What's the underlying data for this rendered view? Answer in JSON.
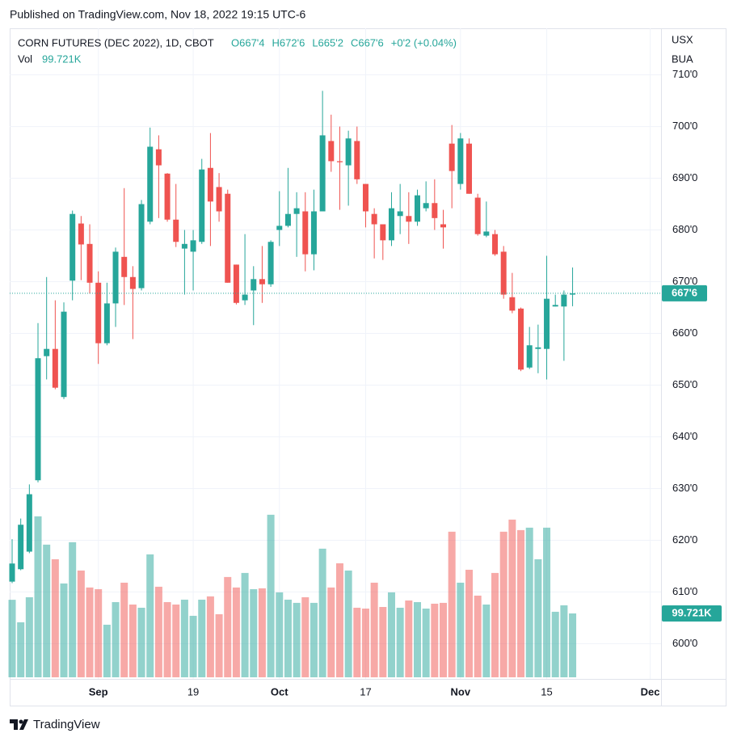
{
  "header": {
    "published": "Published on TradingView.com, Nov 18, 2022 19:15 UTC-6"
  },
  "footer": {
    "brand": "TradingView"
  },
  "chart_data": {
    "type": "candlestick",
    "title": "CORN FUTURES (DEC 2022), 1D, CBOT",
    "legend_values": [
      "O667'4",
      "H672'6",
      "L665'2",
      "C667'6"
    ],
    "change_label": "+0'2 (+0.04%)",
    "volume_label": "Vol",
    "volume_value_label": "99.721K",
    "currency_lines": [
      "USX",
      "BUA"
    ],
    "up_color": "#26a69a",
    "down_color": "#ef5350",
    "grid": true,
    "categories": [
      "2022-08-18",
      "2022-08-19",
      "2022-08-22",
      "2022-08-23",
      "2022-08-24",
      "2022-08-25",
      "2022-08-26",
      "2022-08-29",
      "2022-08-30",
      "2022-08-31",
      "2022-09-01",
      "2022-09-02",
      "2022-09-06",
      "2022-09-07",
      "2022-09-08",
      "2022-09-09",
      "2022-09-12",
      "2022-09-13",
      "2022-09-14",
      "2022-09-15",
      "2022-09-16",
      "2022-09-19",
      "2022-09-20",
      "2022-09-21",
      "2022-09-22",
      "2022-09-23",
      "2022-09-26",
      "2022-09-27",
      "2022-09-28",
      "2022-09-29",
      "2022-09-30",
      "2022-10-03",
      "2022-10-04",
      "2022-10-05",
      "2022-10-06",
      "2022-10-07",
      "2022-10-10",
      "2022-10-11",
      "2022-10-12",
      "2022-10-13",
      "2022-10-14",
      "2022-10-17",
      "2022-10-18",
      "2022-10-19",
      "2022-10-20",
      "2022-10-21",
      "2022-10-24",
      "2022-10-25",
      "2022-10-26",
      "2022-10-27",
      "2022-10-28",
      "2022-10-31",
      "2022-11-01",
      "2022-11-02",
      "2022-11-03",
      "2022-11-04",
      "2022-11-07",
      "2022-11-08",
      "2022-11-09",
      "2022-11-10",
      "2022-11-11",
      "2022-11-14",
      "2022-11-15",
      "2022-11-16",
      "2022-11-17",
      "2022-11-18"
    ],
    "open": [
      612.0,
      614.4,
      617.8,
      631.6,
      655.6,
      657.0,
      647.7,
      670.2,
      681.25,
      677.3,
      669.8,
      658.1,
      665.8,
      674.8,
      670.9,
      668.75,
      681.6,
      695.6,
      690.9,
      682.0,
      676.4,
      675.8,
      677.7,
      692.0,
      688.3,
      687.0,
      673.3,
      666.4,
      668.3,
      670.5,
      669.5,
      680.0,
      680.8,
      683.1,
      683.6,
      675.3,
      683.6,
      697.2,
      693.3,
      692.5,
      697.2,
      688.9,
      683.1,
      681.1,
      678.0,
      682.7,
      682.7,
      681.6,
      684.2,
      685.2,
      681.1,
      696.7,
      688.9,
      696.7,
      686.25,
      678.9,
      679.2,
      675.8,
      667.0,
      664.8,
      653.4,
      657.0,
      657.0,
      665.2,
      665.2,
      667.5
    ],
    "high": [
      620.2,
      624.2,
      630.8,
      662.0,
      670.9,
      666.4,
      666.0,
      683.75,
      682.7,
      681.1,
      672.0,
      669.8,
      676.6,
      688.1,
      673.0,
      685.8,
      699.8,
      698.3,
      691.0,
      688.9,
      680.0,
      680.0,
      693.75,
      698.75,
      691.0,
      687.8,
      673.3,
      679.2,
      673.0,
      676.9,
      678.0,
      687.5,
      692.0,
      687.3,
      687.3,
      687.8,
      706.9,
      702.3,
      700.0,
      699.2,
      700.0,
      688.9,
      684.2,
      681.1,
      687.3,
      688.9,
      687.3,
      687.8,
      689.4,
      689.8,
      683.9,
      700.3,
      698.75,
      697.7,
      687.0,
      685.5,
      680.0,
      676.9,
      671.7,
      665.0,
      661.25,
      661.7,
      675.0,
      667.5,
      668.3,
      672.75
    ],
    "low": [
      611.7,
      614.2,
      617.5,
      631.2,
      651.1,
      649.2,
      647.3,
      666.4,
      670.3,
      667.7,
      654.1,
      657.7,
      661.25,
      665.5,
      658.9,
      668.3,
      681.1,
      682.3,
      681.6,
      676.7,
      667.5,
      668.3,
      677.3,
      676.9,
      681.6,
      669.8,
      665.6,
      665.5,
      661.6,
      665.9,
      669.0,
      676.9,
      680.5,
      674.8,
      672.0,
      672.2,
      683.6,
      691.25,
      683.9,
      684.7,
      688.9,
      680.5,
      674.5,
      674.2,
      676.9,
      679.2,
      677.3,
      680.8,
      683.6,
      680.0,
      676.4,
      684.2,
      687.8,
      687.0,
      678.9,
      678.6,
      675.0,
      666.7,
      663.9,
      652.7,
      653.1,
      652.3,
      651.1,
      665.2,
      654.7,
      665.25
    ],
    "close": [
      615.5,
      623.0,
      628.9,
      655.2,
      657.0,
      649.5,
      664.2,
      683.1,
      677.2,
      669.8,
      658.1,
      665.8,
      675.8,
      670.9,
      668.6,
      685.0,
      696.1,
      692.5,
      682.0,
      677.7,
      677.3,
      678.0,
      691.7,
      685.5,
      683.6,
      669.8,
      665.9,
      667.5,
      670.5,
      669.5,
      677.7,
      680.8,
      683.1,
      684.2,
      675.3,
      683.6,
      698.3,
      693.3,
      693.1,
      697.7,
      689.8,
      683.6,
      681.1,
      678.0,
      684.2,
      683.6,
      681.6,
      686.7,
      685.2,
      682.3,
      680.5,
      691.4,
      697.7,
      687.0,
      679.2,
      679.7,
      675.3,
      667.5,
      664.4,
      653.0,
      657.7,
      657.3,
      666.7,
      665.5,
      667.5,
      667.75
    ],
    "volume": [
      121000,
      85900,
      125000,
      251300,
      207100,
      184300,
      146500,
      210900,
      166700,
      140200,
      137600,
      82100,
      117400,
      147700,
      113600,
      108600,
      191900,
      141400,
      117400,
      113600,
      121200,
      96000,
      121200,
      126300,
      98500,
      156600,
      140200,
      162900,
      137600,
      138900,
      253800,
      132600,
      121200,
      116200,
      125000,
      116200,
      200800,
      140200,
      178000,
      166700,
      108600,
      107300,
      147700,
      109800,
      132600,
      108600,
      119900,
      117400,
      107300,
      114900,
      116200,
      227300,
      147700,
      167900,
      127500,
      113600,
      162900,
      227300,
      246200,
      229800,
      233600,
      184300,
      233600,
      102300,
      112400,
      99721
    ],
    "last_price": 667.75,
    "last_price_label": "667'6",
    "ylim": [
      593.5,
      719
    ],
    "volume_ylim": [
      0,
      400000
    ],
    "yticks": [
      {
        "value": 600,
        "label": "600'0"
      },
      {
        "value": 610,
        "label": "610'0"
      },
      {
        "value": 620,
        "label": "620'0"
      },
      {
        "value": 630,
        "label": "630'0"
      },
      {
        "value": 640,
        "label": "640'0"
      },
      {
        "value": 650,
        "label": "650'0"
      },
      {
        "value": 660,
        "label": "660'0"
      },
      {
        "value": 670,
        "label": "670'0"
      },
      {
        "value": 680,
        "label": "680'0"
      },
      {
        "value": 690,
        "label": "690'0"
      },
      {
        "value": 700,
        "label": "700'0"
      },
      {
        "value": 710,
        "label": "710'0"
      }
    ],
    "xticks": [
      {
        "value": "2022-09-01",
        "label": "Sep"
      },
      {
        "value": "2022-09-19",
        "label": "19"
      },
      {
        "value": "2022-10-03",
        "label": "Oct"
      },
      {
        "value": "2022-10-17",
        "label": "17"
      },
      {
        "value": "2022-11-01",
        "label": "Nov"
      },
      {
        "value": "2022-11-15",
        "label": "15"
      },
      {
        "value": "2022-12-01",
        "label": "Dec"
      }
    ]
  }
}
